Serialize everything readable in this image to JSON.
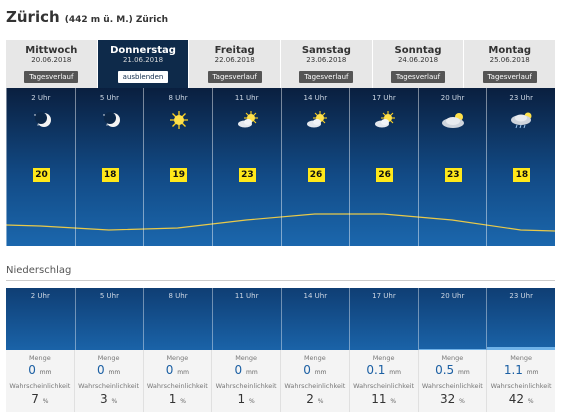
{
  "header": {
    "city": "Zürich",
    "elevation": "(442 m ü. M.) Zürich"
  },
  "days": [
    {
      "name": "Mittwoch",
      "date": "20.06.2018",
      "button": "Tagesverlauf",
      "active": false
    },
    {
      "name": "Donnerstag",
      "date": "21.06.2018",
      "button": "ausblenden",
      "active": true
    },
    {
      "name": "Freitag",
      "date": "22.06.2018",
      "button": "Tagesverlauf",
      "active": false
    },
    {
      "name": "Samstag",
      "date": "23.06.2018",
      "button": "Tagesverlauf",
      "active": false
    },
    {
      "name": "Sonntag",
      "date": "24.06.2018",
      "button": "Tagesverlauf",
      "active": false
    },
    {
      "name": "Montag",
      "date": "25.06.2018",
      "button": "Tagesverlauf",
      "active": false
    }
  ],
  "hourly": [
    {
      "hour": "2 Uhr",
      "icon": "moon-clear-icon",
      "temp": "20"
    },
    {
      "hour": "5 Uhr",
      "icon": "moon-clear-icon",
      "temp": "18"
    },
    {
      "hour": "8 Uhr",
      "icon": "sun-icon",
      "temp": "19"
    },
    {
      "hour": "11 Uhr",
      "icon": "sun-cloud-icon",
      "temp": "23"
    },
    {
      "hour": "14 Uhr",
      "icon": "sun-cloud-icon",
      "temp": "26"
    },
    {
      "hour": "17 Uhr",
      "icon": "sun-cloud-icon",
      "temp": "26"
    },
    {
      "hour": "20 Uhr",
      "icon": "cloud-sun-icon",
      "temp": "23"
    },
    {
      "hour": "23 Uhr",
      "icon": "cloud-rain-icon",
      "temp": "18"
    }
  ],
  "precipitation": {
    "title": "Niederschlag",
    "amount_label": "Menge",
    "prob_label": "Wahrscheinlichkeit",
    "amount_unit": "mm",
    "prob_unit": "%",
    "slots": [
      {
        "hour": "2 Uhr",
        "amount": "0",
        "prob": "7"
      },
      {
        "hour": "5 Uhr",
        "amount": "0",
        "prob": "3"
      },
      {
        "hour": "8 Uhr",
        "amount": "0",
        "prob": "1"
      },
      {
        "hour": "11 Uhr",
        "amount": "0",
        "prob": "1"
      },
      {
        "hour": "14 Uhr",
        "amount": "0",
        "prob": "2"
      },
      {
        "hour": "17 Uhr",
        "amount": "0.1",
        "prob": "11"
      },
      {
        "hour": "20 Uhr",
        "amount": "0.5",
        "prob": "32"
      },
      {
        "hour": "23 Uhr",
        "amount": "1.1",
        "prob": "42"
      }
    ]
  },
  "colors": {
    "accent": "#0e2a4a",
    "temp_badge": "#ffe81a",
    "curve": "#e8c94a"
  }
}
